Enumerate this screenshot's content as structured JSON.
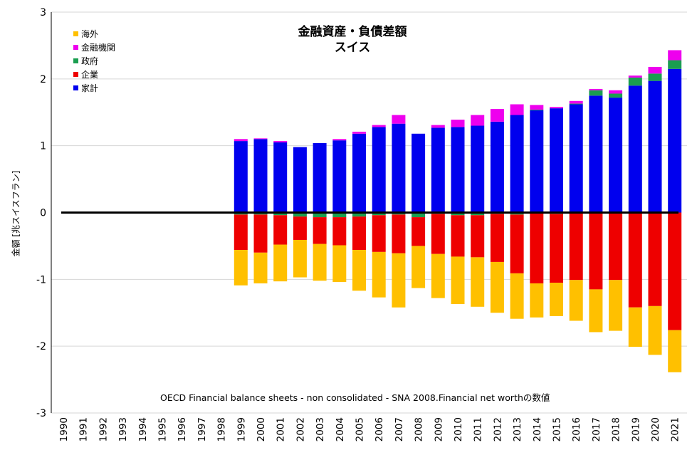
{
  "chart_data": {
    "type": "bar",
    "stacked": true,
    "title": "金融資産・負債差額",
    "subtitle": "スイス",
    "ylabel": "金額 [兆スイスフラン]",
    "ylim": [
      -3,
      3
    ],
    "yticks": [
      "-3",
      "-2",
      "-1",
      "0",
      "1",
      "2",
      "3"
    ],
    "grid": true,
    "legend_position": "top-left",
    "annotation": "OECD Financial balance sheets - non consolidated - SNA 2008.Financial net worthの数値",
    "categories": [
      "1990",
      "1991",
      "1992",
      "1993",
      "1994",
      "1995",
      "1996",
      "1997",
      "1998",
      "1999",
      "2000",
      "2001",
      "2002",
      "2003",
      "2004",
      "2005",
      "2006",
      "2007",
      "2008",
      "2009",
      "2010",
      "2011",
      "2012",
      "2013",
      "2014",
      "2015",
      "2016",
      "2017",
      "2018",
      "2019",
      "2020",
      "2021"
    ],
    "series": [
      {
        "name": "家計",
        "color": "#0000ee",
        "values": [
          null,
          null,
          null,
          null,
          null,
          null,
          null,
          null,
          null,
          1.07,
          1.1,
          1.05,
          0.98,
          1.04,
          1.08,
          1.18,
          1.28,
          1.33,
          1.18,
          1.27,
          1.28,
          1.3,
          1.36,
          1.46,
          1.53,
          1.56,
          1.62,
          1.75,
          1.72,
          1.9,
          1.97,
          2.15
        ]
      },
      {
        "name": "企業",
        "color": "#ee0000",
        "values": [
          null,
          null,
          null,
          null,
          null,
          null,
          null,
          null,
          null,
          -0.53,
          -0.57,
          -0.44,
          -0.35,
          -0.4,
          -0.42,
          -0.5,
          -0.55,
          -0.58,
          -0.43,
          -0.6,
          -0.62,
          -0.63,
          -0.72,
          -0.88,
          -1.06,
          -1.03,
          -1.01,
          -1.15,
          -1.01,
          -1.42,
          -1.4,
          -1.76
        ]
      },
      {
        "name": "政府",
        "color": "#1a9e50",
        "values": [
          null,
          null,
          null,
          null,
          null,
          null,
          null,
          null,
          null,
          -0.03,
          -0.03,
          -0.04,
          -0.06,
          -0.07,
          -0.07,
          -0.06,
          -0.04,
          -0.03,
          -0.07,
          -0.02,
          -0.04,
          -0.04,
          -0.02,
          -0.03,
          0.01,
          -0.02,
          0.01,
          0.08,
          0.06,
          0.12,
          0.11,
          0.13
        ]
      },
      {
        "name": "金融機関",
        "color": "#ee00ee",
        "values": [
          null,
          null,
          null,
          null,
          null,
          null,
          null,
          null,
          null,
          0.03,
          0.01,
          0.02,
          0.0,
          0.0,
          0.02,
          0.03,
          0.03,
          0.13,
          0.0,
          0.04,
          0.11,
          0.16,
          0.19,
          0.16,
          0.07,
          0.02,
          0.04,
          0.02,
          0.05,
          0.03,
          0.1,
          0.15
        ]
      },
      {
        "name": "海外",
        "color": "#ffc000",
        "values": [
          null,
          null,
          null,
          null,
          null,
          null,
          null,
          null,
          null,
          -0.53,
          -0.46,
          -0.55,
          -0.56,
          -0.55,
          -0.55,
          -0.61,
          -0.68,
          -0.81,
          -0.63,
          -0.66,
          -0.71,
          -0.74,
          -0.76,
          -0.68,
          -0.51,
          -0.5,
          -0.61,
          -0.64,
          -0.76,
          -0.59,
          -0.73,
          -0.63
        ]
      }
    ]
  }
}
